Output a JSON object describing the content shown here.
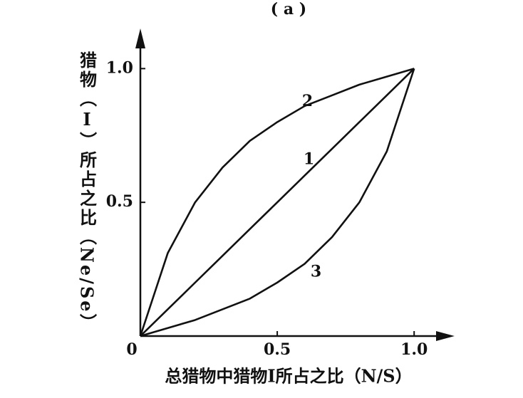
{
  "chart_data": {
    "type": "line",
    "title": "( a )",
    "x_label": "总猎物中猎物Ⅰ所占之比（N/S）",
    "y_label": "猎物（Ⅰ）所占之比（Ne/Se）",
    "x": [
      0,
      0.1,
      0.2,
      0.3,
      0.4,
      0.5,
      0.6,
      0.7,
      0.8,
      0.9,
      1.0
    ],
    "series": [
      {
        "name": "1",
        "color": "#111111",
        "values": [
          0,
          0.1,
          0.2,
          0.3,
          0.4,
          0.5,
          0.6,
          0.7,
          0.8,
          0.9,
          1.0
        ]
      },
      {
        "name": "2",
        "color": "#111111",
        "values": [
          0,
          0.31,
          0.5,
          0.63,
          0.73,
          0.8,
          0.86,
          0.9,
          0.94,
          0.97,
          1.0
        ]
      },
      {
        "name": "3",
        "color": "#111111",
        "values": [
          0,
          0.03,
          0.06,
          0.1,
          0.14,
          0.2,
          0.27,
          0.37,
          0.5,
          0.69,
          1.0
        ]
      }
    ],
    "xlim": [
      0,
      1.14
    ],
    "ylim": [
      0,
      1.15
    ],
    "xticks": [
      0,
      0.5,
      {
        "value": 1,
        "label": "1.0"
      }
    ],
    "yticks": [
      0.5,
      {
        "value": 1,
        "label": "1.0"
      }
    ],
    "grid": false
  }
}
